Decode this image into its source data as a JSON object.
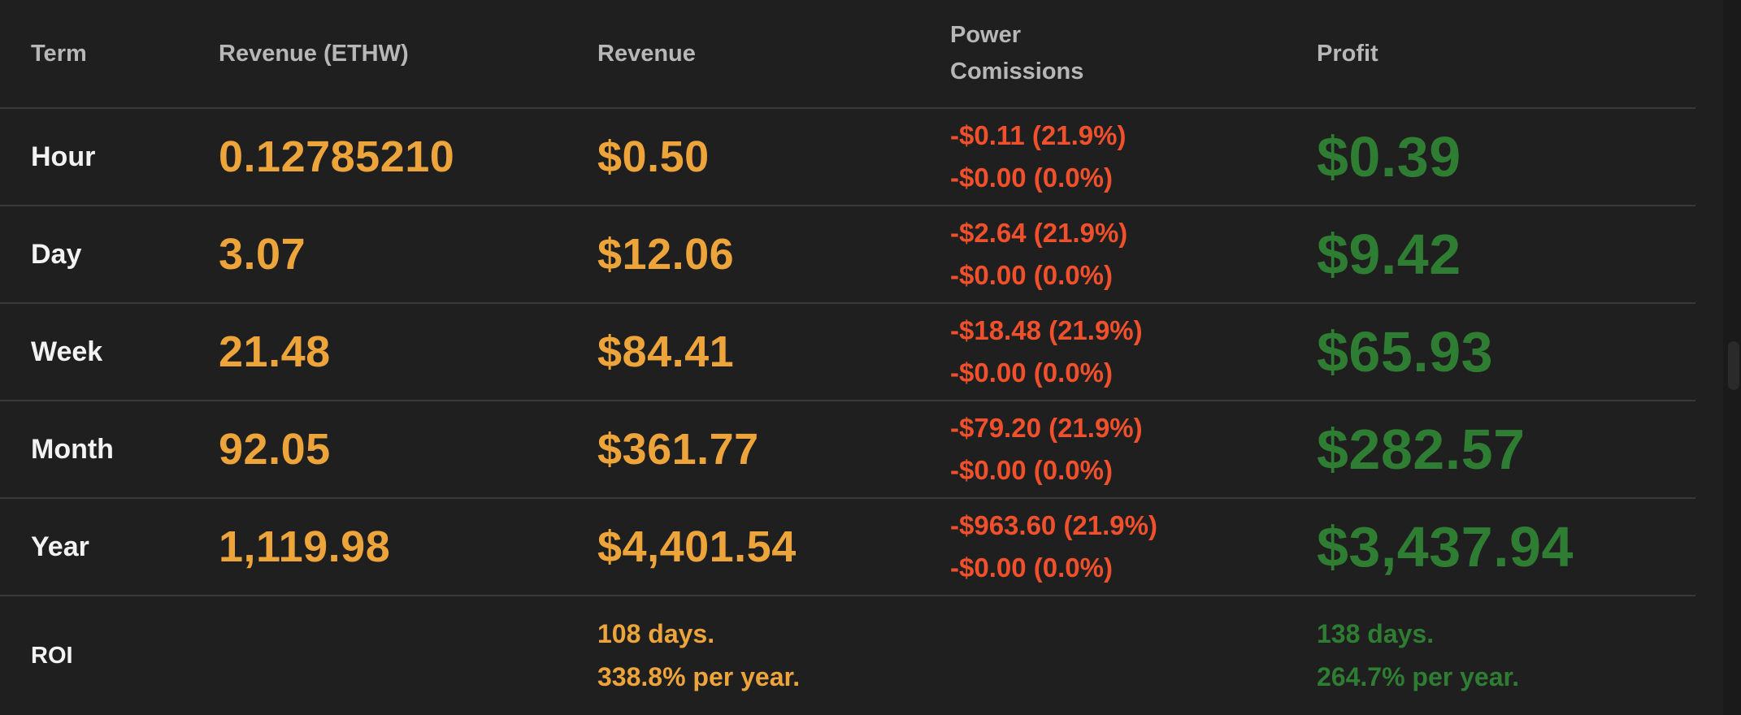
{
  "headers": {
    "term": "Term",
    "revenue_ethw": "Revenue (ETHW)",
    "revenue": "Revenue",
    "power_line1": "Power",
    "power_line2": "Comissions",
    "profit": "Profit"
  },
  "rows": [
    {
      "term": "Hour",
      "eth": "0.12785210",
      "revenue": "$0.50",
      "power": "-$0.11 (21.9%)",
      "commission": "-$0.00 (0.0%)",
      "profit": "$0.39"
    },
    {
      "term": "Day",
      "eth": "3.07",
      "revenue": "$12.06",
      "power": "-$2.64 (21.9%)",
      "commission": "-$0.00 (0.0%)",
      "profit": "$9.42"
    },
    {
      "term": "Week",
      "eth": "21.48",
      "revenue": "$84.41",
      "power": "-$18.48 (21.9%)",
      "commission": "-$0.00 (0.0%)",
      "profit": "$65.93"
    },
    {
      "term": "Month",
      "eth": "92.05",
      "revenue": "$361.77",
      "power": "-$79.20 (21.9%)",
      "commission": "-$0.00 (0.0%)",
      "profit": "$282.57"
    },
    {
      "term": "Year",
      "eth": "1,119.98",
      "revenue": "$4,401.54",
      "power": "-$963.60 (21.9%)",
      "commission": "-$0.00 (0.0%)",
      "profit": "$3,437.94"
    }
  ],
  "roi": {
    "label": "ROI",
    "revenue_days": "108 days.",
    "revenue_rate": "338.8% per year.",
    "profit_days": "138 days.",
    "profit_rate": "264.7% per year."
  },
  "colors": {
    "background": "#1f1f1f",
    "revenue": "#eda43a",
    "cost": "#f0502c",
    "profit": "#2e7d32"
  }
}
